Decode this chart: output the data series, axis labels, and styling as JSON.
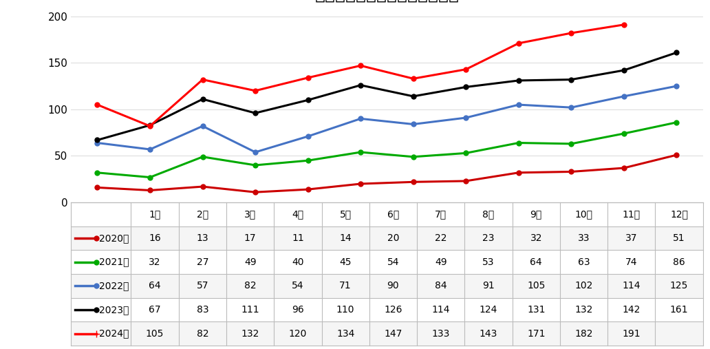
{
  "months": [
    "1月",
    "2月",
    "3月",
    "4月",
    "5月",
    "6月",
    "7月",
    "8月",
    "9月",
    "10月",
    "11月",
    "12月"
  ],
  "series": [
    {
      "label": "2020年",
      "color": "#CC0000",
      "values": [
        16,
        13,
        17,
        11,
        14,
        20,
        22,
        23,
        32,
        33,
        37,
        51
      ]
    },
    {
      "label": "2021年",
      "color": "#00AA00",
      "values": [
        32,
        27,
        49,
        40,
        45,
        54,
        49,
        53,
        64,
        63,
        74,
        86
      ]
    },
    {
      "label": "2022年",
      "color": "#4472C4",
      "values": [
        64,
        57,
        82,
        54,
        71,
        90,
        84,
        91,
        105,
        102,
        114,
        125
      ]
    },
    {
      "label": "2023年",
      "color": "#000000",
      "values": [
        67,
        83,
        111,
        96,
        110,
        126,
        114,
        124,
        131,
        132,
        142,
        161
      ]
    },
    {
      "label": "2024年",
      "color": "#FF0000",
      "values": [
        105,
        82,
        132,
        120,
        134,
        147,
        133,
        143,
        171,
        182,
        191,
        null
      ]
    }
  ],
  "table_rows": [
    {
      "label": "2020年",
      "color": "#CC0000",
      "values": [
        16,
        13,
        17,
        11,
        14,
        20,
        22,
        23,
        32,
        33,
        37,
        51
      ]
    },
    {
      "label": "2021年",
      "color": "#00AA00",
      "values": [
        32,
        27,
        49,
        40,
        45,
        54,
        49,
        53,
        64,
        63,
        74,
        86
      ]
    },
    {
      "label": "2022年",
      "color": "#4472C4",
      "values": [
        64,
        57,
        82,
        54,
        71,
        90,
        84,
        91,
        105,
        102,
        114,
        125
      ]
    },
    {
      "label": "2023年",
      "color": "#000000",
      "values": [
        67,
        83,
        111,
        96,
        110,
        126,
        114,
        124,
        131,
        132,
        142,
        161
      ]
    },
    {
      "label": "2024年",
      "color": "#FF0000",
      "values": [
        105,
        82,
        132,
        120,
        134,
        147,
        133,
        143,
        171,
        182,
        191,
        null
      ]
    }
  ],
  "ylim": [
    0,
    210
  ],
  "yticks": [
    0,
    50,
    100,
    150,
    200
  ],
  "background_color": "#FFFFFF",
  "title_fontsize": 18,
  "marker": "o",
  "marker_size": 5,
  "line_width": 2.2,
  "table_bg_odd": "#F5F5F5",
  "table_bg_even": "#FFFFFF",
  "table_header_bg": "#FFFFFF"
}
